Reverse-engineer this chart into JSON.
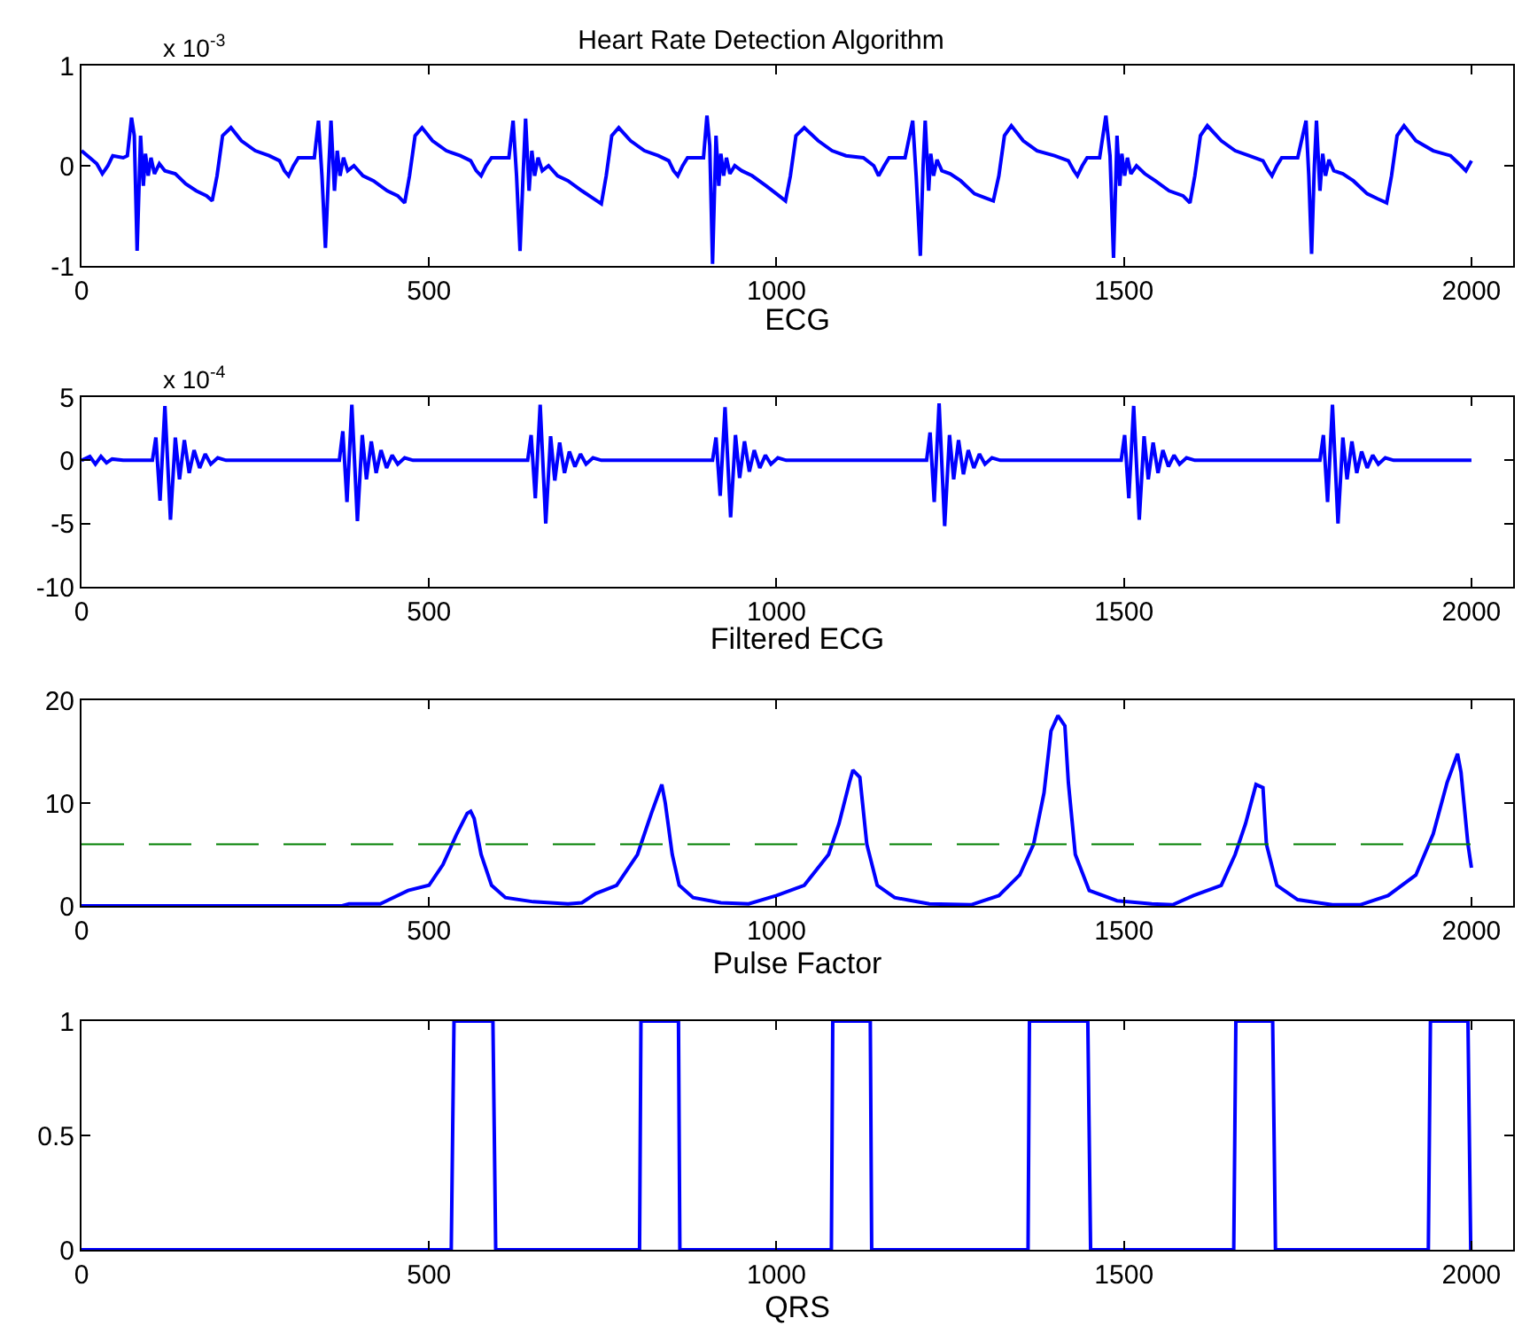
{
  "chart_data": [
    {
      "type": "line",
      "title": "Heart Rate Detection Algorithm",
      "xlabel": "ECG",
      "annotations": [
        "x 10$^{-3}$"
      ],
      "xlim": [
        0,
        2060
      ],
      "xticks": [
        0,
        500,
        1000,
        1500,
        2000
      ],
      "ylim": [
        -1,
        1
      ],
      "yticks": [
        -1,
        0,
        1
      ],
      "x": [
        0,
        12,
        22,
        30,
        38,
        45,
        60,
        66,
        72,
        76,
        80,
        85,
        89,
        92,
        96,
        100,
        105,
        112,
        120,
        135,
        150,
        165,
        180,
        188,
        195,
        203,
        215,
        230,
        250,
        270,
        285,
        292,
        298,
        305,
        312,
        335,
        341,
        346,
        351,
        356,
        359,
        364,
        368,
        372,
        377,
        383,
        392,
        405,
        420,
        440,
        455,
        465,
        472,
        480,
        490,
        505,
        525,
        545,
        560,
        568,
        575,
        582,
        590,
        615,
        621,
        626,
        631,
        636,
        639,
        644,
        648,
        652,
        657,
        663,
        672,
        685,
        700,
        720,
        735,
        748,
        755,
        763,
        773,
        790,
        810,
        830,
        845,
        852,
        858,
        865,
        872,
        895,
        900,
        904,
        908,
        913,
        917,
        920,
        924,
        928,
        933,
        940,
        950,
        965,
        985,
        1000,
        1013,
        1020,
        1028,
        1040,
        1060,
        1080,
        1100,
        1125,
        1140,
        1147,
        1155,
        1162,
        1185,
        1196,
        1201,
        1207,
        1211,
        1214,
        1219,
        1222,
        1226,
        1231,
        1238,
        1250,
        1265,
        1285,
        1300,
        1312,
        1320,
        1328,
        1338,
        1355,
        1375,
        1400,
        1420,
        1428,
        1433,
        1440,
        1447,
        1465,
        1474,
        1480,
        1485,
        1490,
        1494,
        1497,
        1501,
        1505,
        1510,
        1518,
        1530,
        1545,
        1565,
        1585,
        1595,
        1602,
        1610,
        1620,
        1640,
        1660,
        1680,
        1700,
        1708,
        1713,
        1720,
        1727,
        1750,
        1762,
        1766,
        1770,
        1774,
        1777,
        1782,
        1786,
        1790,
        1795,
        1802,
        1815,
        1830,
        1850,
        1865,
        1878,
        1885,
        1893,
        1903,
        1920,
        1945,
        1970,
        1985,
        1992,
        2000
      ],
      "series": [
        {
          "color": "#0000ff",
          "values": [
            0.15,
            0.08,
            0.02,
            -0.08,
            0.0,
            0.1,
            0.08,
            0.1,
            0.48,
            0.3,
            -0.85,
            0.3,
            -0.2,
            0.12,
            -0.1,
            0.08,
            -0.08,
            0.02,
            -0.05,
            -0.08,
            -0.18,
            -0.25,
            -0.3,
            -0.35,
            -0.1,
            0.3,
            0.38,
            0.25,
            0.15,
            0.1,
            0.05,
            -0.05,
            -0.1,
            0.0,
            0.08,
            0.08,
            0.45,
            -0.1,
            -0.82,
            0.0,
            0.45,
            -0.25,
            0.15,
            -0.1,
            0.08,
            -0.05,
            0.0,
            -0.1,
            -0.15,
            -0.25,
            -0.3,
            -0.37,
            -0.1,
            0.3,
            0.38,
            0.25,
            0.15,
            0.1,
            0.05,
            -0.05,
            -0.1,
            0.0,
            0.08,
            0.08,
            0.45,
            -0.1,
            -0.85,
            0.0,
            0.47,
            -0.25,
            0.15,
            -0.1,
            0.08,
            -0.05,
            0.0,
            -0.1,
            -0.15,
            -0.25,
            -0.32,
            -0.38,
            -0.1,
            0.3,
            0.38,
            0.25,
            0.15,
            0.1,
            0.05,
            -0.05,
            -0.1,
            0.0,
            0.08,
            0.08,
            0.5,
            0.2,
            -0.98,
            0.3,
            -0.2,
            0.12,
            -0.1,
            0.08,
            -0.08,
            0.0,
            -0.05,
            -0.1,
            -0.2,
            -0.28,
            -0.35,
            -0.1,
            0.3,
            0.38,
            0.25,
            0.15,
            0.1,
            0.08,
            0.0,
            -0.1,
            0.0,
            0.08,
            0.08,
            0.45,
            -0.1,
            -0.9,
            0.0,
            0.45,
            -0.25,
            0.12,
            -0.1,
            0.06,
            -0.05,
            -0.08,
            -0.15,
            -0.28,
            -0.32,
            -0.35,
            -0.1,
            0.3,
            0.4,
            0.25,
            0.15,
            0.1,
            0.05,
            -0.05,
            -0.1,
            0.0,
            0.08,
            0.08,
            0.5,
            0.1,
            -0.92,
            0.3,
            -0.2,
            0.12,
            -0.1,
            0.08,
            -0.08,
            0.0,
            -0.08,
            -0.15,
            -0.25,
            -0.3,
            -0.37,
            -0.1,
            0.3,
            0.4,
            0.25,
            0.15,
            0.1,
            0.05,
            -0.05,
            -0.1,
            0.0,
            0.08,
            0.08,
            0.45,
            -0.1,
            -0.88,
            0.0,
            0.45,
            -0.25,
            0.12,
            -0.1,
            0.06,
            -0.05,
            -0.08,
            -0.15,
            -0.28,
            -0.33,
            -0.37,
            -0.1,
            0.3,
            0.4,
            0.25,
            0.15,
            0.1,
            0.0,
            -0.05,
            0.05
          ]
        }
      ]
    },
    {
      "type": "line",
      "xlabel": "Filtered ECG",
      "annotations": [
        "x 10$^{-4}$"
      ],
      "xlim": [
        0,
        2060
      ],
      "xticks": [
        0,
        500,
        1000,
        1500,
        2000
      ],
      "ylim": [
        -10,
        5
      ],
      "yticks": [
        -10,
        -5,
        0,
        5
      ],
      "x": [
        0,
        12,
        20,
        28,
        36,
        44,
        60,
        102,
        107,
        113,
        120,
        128,
        135,
        141,
        148,
        155,
        162,
        170,
        178,
        186,
        196,
        208,
        371,
        376,
        382,
        389,
        397,
        404,
        410,
        417,
        424,
        431,
        439,
        447,
        455,
        465,
        477,
        642,
        647,
        653,
        660,
        668,
        675,
        681,
        688,
        695,
        702,
        710,
        718,
        726,
        736,
        748,
        908,
        913,
        919,
        926,
        934,
        941,
        947,
        954,
        961,
        968,
        976,
        984,
        992,
        1002,
        1014,
        1216,
        1221,
        1227,
        1234,
        1242,
        1249,
        1255,
        1262,
        1269,
        1276,
        1284,
        1292,
        1300,
        1310,
        1322,
        1496,
        1501,
        1507,
        1514,
        1522,
        1529,
        1535,
        1542,
        1549,
        1556,
        1564,
        1572,
        1580,
        1590,
        1602,
        1782,
        1787,
        1793,
        1800,
        1808,
        1815,
        1821,
        1828,
        1835,
        1842,
        1850,
        1858,
        1866,
        1876,
        1888,
        2000
      ],
      "series": [
        {
          "color": "#0000ff",
          "values": [
            0,
            0.3,
            -0.3,
            0.3,
            -0.2,
            0.1,
            0,
            0,
            1.8,
            -3.2,
            4.3,
            -4.7,
            1.8,
            -1.5,
            1.6,
            -1.0,
            0.8,
            -0.6,
            0.5,
            -0.3,
            0.2,
            0,
            0,
            2.3,
            -3.3,
            4.4,
            -4.8,
            2.0,
            -1.5,
            1.5,
            -1.0,
            0.8,
            -0.6,
            0.4,
            -0.3,
            0.2,
            0,
            0,
            2.0,
            -3.0,
            4.4,
            -5.0,
            1.9,
            -1.6,
            1.4,
            -1.0,
            0.7,
            -0.5,
            0.5,
            -0.3,
            0.2,
            0,
            0,
            1.8,
            -2.8,
            4.2,
            -4.5,
            2.0,
            -1.4,
            1.5,
            -0.9,
            0.8,
            -0.6,
            0.4,
            -0.3,
            0.2,
            0,
            0,
            2.2,
            -3.3,
            4.5,
            -5.2,
            2.0,
            -1.5,
            1.6,
            -1.1,
            0.8,
            -0.6,
            0.5,
            -0.3,
            0.2,
            0,
            0,
            2.0,
            -3.0,
            4.3,
            -4.7,
            1.9,
            -1.5,
            1.4,
            -1.0,
            0.8,
            -0.5,
            0.4,
            -0.3,
            0.2,
            0,
            0,
            2.0,
            -3.3,
            4.4,
            -5.0,
            1.8,
            -1.5,
            1.5,
            -1.0,
            0.7,
            -0.6,
            0.4,
            -0.3,
            0.2,
            0,
            0
          ]
        }
      ]
    },
    {
      "type": "line",
      "xlabel": "Pulse Factor",
      "xlim": [
        0,
        2060
      ],
      "xticks": [
        0,
        500,
        1000,
        1500,
        2000
      ],
      "ylim": [
        0,
        20
      ],
      "yticks": [
        0,
        10,
        20
      ],
      "ref_lines": [
        {
          "axis": "y",
          "value": 6,
          "color": "#008000",
          "line_style": "dashed"
        }
      ],
      "x": [
        0,
        375,
        385,
        430,
        470,
        500,
        520,
        540,
        555,
        560,
        565,
        575,
        590,
        610,
        650,
        700,
        720,
        740,
        770,
        800,
        820,
        835,
        840,
        850,
        860,
        880,
        920,
        960,
        1000,
        1040,
        1075,
        1090,
        1105,
        1110,
        1120,
        1130,
        1145,
        1170,
        1220,
        1280,
        1320,
        1350,
        1370,
        1385,
        1395,
        1405,
        1415,
        1420,
        1430,
        1450,
        1490,
        1540,
        1570,
        1600,
        1640,
        1660,
        1675,
        1690,
        1700,
        1705,
        1720,
        1750,
        1800,
        1840,
        1880,
        1920,
        1945,
        1965,
        1980,
        1985,
        1995,
        2000
      ],
      "series": [
        {
          "color": "#0000ff",
          "values": [
            0,
            0,
            0.2,
            0.2,
            1.5,
            2,
            4,
            7,
            9,
            9.2,
            8.5,
            5,
            2,
            0.8,
            0.4,
            0.2,
            0.3,
            1.2,
            2,
            5,
            9,
            11.8,
            10,
            5,
            2,
            0.8,
            0.3,
            0.2,
            1,
            2,
            5,
            8,
            12,
            13.2,
            12.5,
            6,
            2,
            0.8,
            0.2,
            0.1,
            1,
            3,
            6,
            11,
            17,
            18.5,
            17.5,
            12,
            5,
            1.5,
            0.5,
            0.2,
            0.1,
            1,
            2,
            5,
            8,
            11.8,
            11.5,
            6,
            2,
            0.6,
            0.1,
            0.1,
            1,
            3,
            7,
            12,
            14.8,
            13,
            6,
            3.7
          ]
        }
      ]
    },
    {
      "type": "line",
      "xlabel": "QRS",
      "xlim": [
        0,
        2060
      ],
      "xticks": [
        0,
        500,
        1000,
        1500,
        2000
      ],
      "ylim": [
        0,
        1
      ],
      "yticks": [
        0,
        0.5,
        1
      ],
      "x": [
        0,
        532,
        536,
        592,
        596,
        803,
        805,
        859,
        861,
        1079,
        1081,
        1135,
        1137,
        1362,
        1364,
        1448,
        1452,
        1658,
        1661,
        1714,
        1718,
        1938,
        1941,
        1995,
        1999
      ],
      "series": [
        {
          "color": "#0000ff",
          "values": [
            0,
            0,
            1,
            1,
            0,
            0,
            1,
            1,
            0,
            0,
            1,
            1,
            0,
            0,
            1,
            1,
            0,
            0,
            1,
            1,
            0,
            0,
            1,
            1,
            0
          ]
        }
      ]
    }
  ]
}
